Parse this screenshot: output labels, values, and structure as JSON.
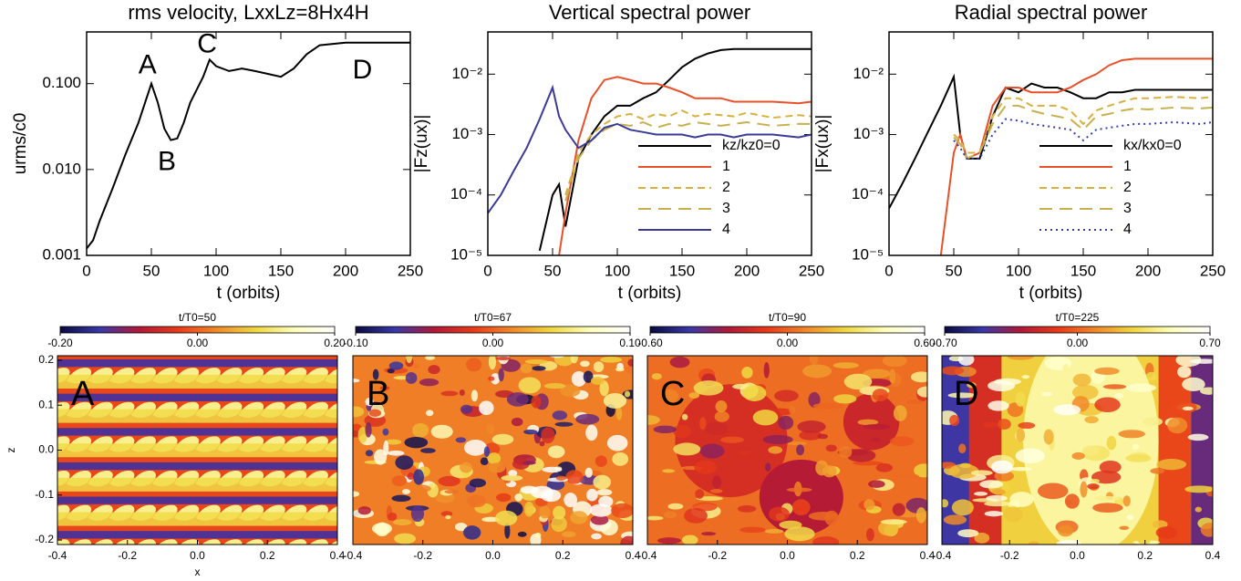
{
  "chart_data": [
    {
      "type": "line",
      "title": "rms velocity, LxxLz=8Hx4H",
      "xlabel": "t (orbits)",
      "ylabel": "urms/c0",
      "ylog": true,
      "xlim": [
        0,
        250
      ],
      "ylim": [
        0.001,
        0.4
      ],
      "xticks": [
        0,
        50,
        100,
        150,
        200,
        250
      ],
      "yticks": [
        0.001,
        {
          "value": 0.01,
          "label": "0.010"
        },
        {
          "value": 0.1,
          "label": "0.100"
        }
      ],
      "x": [
        0,
        5,
        10,
        20,
        30,
        40,
        50,
        55,
        60,
        65,
        70,
        75,
        80,
        90,
        95,
        100,
        110,
        120,
        130,
        140,
        150,
        160,
        170,
        180,
        200,
        220,
        250
      ],
      "series": [
        {
          "color": "#000000",
          "values": [
            0.0012,
            0.0015,
            0.0025,
            0.006,
            0.015,
            0.035,
            0.1,
            0.06,
            0.03,
            0.022,
            0.023,
            0.035,
            0.06,
            0.12,
            0.19,
            0.16,
            0.14,
            0.15,
            0.14,
            0.13,
            0.12,
            0.15,
            0.22,
            0.28,
            0.3,
            0.3,
            0.3
          ]
        }
      ],
      "annotations": [
        {
          "text": "A",
          "x": 47,
          "y": 0.16
        },
        {
          "text": "B",
          "x": 62,
          "y": 0.012
        },
        {
          "text": "C",
          "x": 93,
          "y": 0.28
        },
        {
          "text": "D",
          "x": 213,
          "y": 0.14
        }
      ]
    },
    {
      "type": "line",
      "title": "Vertical spectral power",
      "xlabel": "t (orbits)",
      "ylabel": "|Fz(ux)|",
      "ylog": true,
      "xlim": [
        0,
        250
      ],
      "ylim": [
        1e-05,
        0.05
      ],
      "legend": "lower right",
      "xticks": [
        0,
        50,
        100,
        150,
        200,
        250
      ],
      "yticks": [
        {
          "value": 1e-05,
          "label": "10⁻⁵"
        },
        {
          "value": 0.0001,
          "label": "10⁻⁴"
        },
        {
          "value": 0.001,
          "label": "10⁻³"
        },
        {
          "value": 0.01,
          "label": "10⁻²"
        }
      ],
      "x": [
        0,
        10,
        20,
        30,
        40,
        50,
        55,
        60,
        70,
        80,
        90,
        100,
        110,
        120,
        130,
        140,
        150,
        160,
        170,
        180,
        190,
        200,
        220,
        240,
        250
      ],
      "series": [
        {
          "name": "kz/kz0=0",
          "color": "#000000",
          "values": [
            null,
            null,
            null,
            null,
            1.2e-05,
            0.0001,
            0.00015,
            3e-05,
            0.0004,
            0.001,
            0.002,
            0.003,
            0.003,
            0.004,
            0.005,
            0.008,
            0.013,
            0.018,
            0.022,
            0.025,
            0.026,
            0.026,
            0.026,
            0.026,
            0.026
          ]
        },
        {
          "name": "1",
          "color": "#e8502a",
          "values": [
            null,
            null,
            null,
            null,
            null,
            null,
            1e-05,
            5e-05,
            0.0008,
            0.004,
            0.008,
            0.009,
            0.008,
            0.007,
            0.007,
            0.006,
            0.005,
            0.004,
            0.004,
            0.004,
            0.0035,
            0.0035,
            0.0035,
            0.0033,
            0.0035
          ]
        },
        {
          "name": "2",
          "color": "#d8b040",
          "dash": "8,5",
          "values": [
            null,
            null,
            null,
            null,
            null,
            null,
            null,
            0.0001,
            0.0005,
            0.001,
            0.0015,
            0.002,
            0.0022,
            0.0018,
            0.0022,
            0.002,
            0.0025,
            0.002,
            0.0022,
            0.0021,
            0.002,
            0.0023,
            0.0019,
            0.0021,
            0.002
          ]
        },
        {
          "name": "3",
          "color": "#c8b050",
          "dash": "14,8",
          "values": [
            null,
            null,
            null,
            null,
            null,
            null,
            null,
            8e-05,
            0.0004,
            0.0008,
            0.0012,
            0.0015,
            0.0014,
            0.0016,
            0.0013,
            0.0015,
            0.0014,
            0.0016,
            0.0015,
            0.0014,
            0.0015,
            0.0016,
            0.0014,
            0.0015,
            0.0015
          ]
        },
        {
          "name": "4",
          "color": "#3a3a98",
          "values": [
            5e-05,
            0.0001,
            0.00025,
            0.0006,
            0.0018,
            0.006,
            0.002,
            0.0012,
            0.0006,
            0.0008,
            0.0013,
            0.0015,
            0.0012,
            0.0011,
            0.001,
            0.001,
            0.001,
            0.0009,
            0.001,
            0.001,
            0.0009,
            0.001,
            0.001,
            0.0009,
            0.001
          ]
        }
      ]
    },
    {
      "type": "line",
      "title": "Radial spectral power",
      "xlabel": "t (orbits)",
      "ylabel": "|Fx(ux)|",
      "ylog": true,
      "xlim": [
        0,
        250
      ],
      "ylim": [
        1e-05,
        0.05
      ],
      "legend": "lower right",
      "xticks": [
        0,
        50,
        100,
        150,
        200,
        250
      ],
      "yticks": [
        {
          "value": 1e-05,
          "label": "10⁻⁵"
        },
        {
          "value": 0.0001,
          "label": "10⁻⁴"
        },
        {
          "value": 0.001,
          "label": "10⁻³"
        },
        {
          "value": 0.01,
          "label": "10⁻²"
        }
      ],
      "x": [
        0,
        10,
        20,
        30,
        40,
        50,
        55,
        60,
        70,
        80,
        90,
        100,
        110,
        120,
        130,
        140,
        150,
        160,
        170,
        180,
        190,
        200,
        220,
        240,
        250
      ],
      "series": [
        {
          "name": "kx/kx0=0",
          "color": "#000000",
          "values": [
            6e-05,
            0.00015,
            0.0004,
            0.0011,
            0.003,
            0.009,
            0.001,
            0.0004,
            0.0004,
            0.002,
            0.006,
            0.005,
            0.007,
            0.006,
            0.006,
            0.005,
            0.004,
            0.004,
            0.005,
            0.005,
            0.0055,
            0.0055,
            0.0055,
            0.0055,
            0.0055
          ]
        },
        {
          "name": "1",
          "color": "#e8502a",
          "values": [
            null,
            null,
            null,
            null,
            1e-05,
            0.0005,
            0.001,
            0.0004,
            0.0005,
            0.003,
            0.006,
            0.006,
            0.005,
            0.005,
            0.005,
            0.006,
            0.008,
            0.01,
            0.014,
            0.017,
            0.018,
            0.018,
            0.018,
            0.018,
            0.018
          ]
        },
        {
          "name": "2",
          "color": "#d8b040",
          "dash": "8,5",
          "values": [
            null,
            null,
            null,
            null,
            null,
            0.001,
            0.0008,
            0.0005,
            0.0005,
            0.002,
            0.004,
            0.004,
            0.003,
            0.003,
            0.003,
            0.0025,
            0.0015,
            0.0025,
            0.003,
            0.0035,
            0.004,
            0.004,
            0.0042,
            0.004,
            0.0042
          ]
        },
        {
          "name": "3",
          "color": "#c8b050",
          "dash": "14,8",
          "values": [
            null,
            null,
            null,
            null,
            null,
            0.0009,
            0.0007,
            0.0004,
            0.0005,
            0.0015,
            0.003,
            0.003,
            0.0025,
            0.0022,
            0.002,
            0.0018,
            0.0012,
            0.002,
            0.0022,
            0.0025,
            0.0027,
            0.0026,
            0.0028,
            0.0027,
            0.0028
          ]
        },
        {
          "name": "4",
          "color": "#3040b0",
          "dash": "2,4",
          "values": [
            null,
            null,
            null,
            null,
            null,
            0.0008,
            0.0006,
            0.0004,
            0.0004,
            0.001,
            0.0018,
            0.0017,
            0.0015,
            0.0014,
            0.0013,
            0.0012,
            0.0008,
            0.0012,
            0.0013,
            0.0014,
            0.0015,
            0.0015,
            0.0016,
            0.0015,
            0.0016
          ]
        }
      ]
    },
    {
      "type": "heatmap",
      "title": "t/T0=50",
      "xlabel": "x",
      "ylabel": "z",
      "xlim": [
        -0.4,
        0.4
      ],
      "ylim": [
        -0.21,
        0.21
      ],
      "clim": [
        -0.2,
        0.2
      ],
      "xticks": [
        -0.4,
        -0.2,
        {
          "value": 0,
          "label": "0.0"
        },
        0.2,
        0.4
      ],
      "yticks": [
        -0.2,
        -0.1,
        {
          "value": 0,
          "label": "0.0"
        },
        0.1,
        0.2
      ],
      "cticks": [
        {
          "value": -0.2,
          "label": "-0.20"
        },
        {
          "value": 0,
          "label": "0.00"
        },
        {
          "value": 0.2,
          "label": "0.20"
        }
      ],
      "colormap": [
        "#0a0a40",
        "#3838a8",
        "#b01838",
        "#e83a18",
        "#f08a28",
        "#f0d840",
        "#ffffc0",
        "#ffffff"
      ],
      "annotation": {
        "text": "A",
        "color": "#9a9a9a"
      }
    },
    {
      "type": "heatmap",
      "title": "t/T0=67",
      "xlim": [
        -0.4,
        0.4
      ],
      "clim": [
        -0.1,
        0.1
      ],
      "xticks": [
        -0.4,
        -0.2,
        {
          "value": 0,
          "label": "0.0"
        },
        0.2,
        0.4
      ],
      "cticks": [
        {
          "value": -0.1,
          "label": "-0.10"
        },
        {
          "value": 0,
          "label": "0.00"
        },
        {
          "value": 0.1,
          "label": "0.10"
        }
      ],
      "colormap": [
        "#0a0a40",
        "#3838a8",
        "#b01838",
        "#e83a18",
        "#f08a28",
        "#f0d840",
        "#ffffc0",
        "#ffffff"
      ],
      "annotation": {
        "text": "B",
        "color": "#000000"
      }
    },
    {
      "type": "heatmap",
      "title": "t/T0=90",
      "xlim": [
        -0.4,
        0.4
      ],
      "clim": [
        -0.6,
        0.6
      ],
      "xticks": [
        -0.4,
        -0.2,
        {
          "value": 0,
          "label": "0.0"
        },
        0.2,
        0.4
      ],
      "cticks": [
        {
          "value": -0.6,
          "label": "-0.60"
        },
        {
          "value": 0,
          "label": "0.00"
        },
        {
          "value": 0.6,
          "label": "0.60"
        }
      ],
      "colormap": [
        "#0a0a40",
        "#3838a8",
        "#b01838",
        "#e83a18",
        "#f08a28",
        "#f0d840",
        "#ffffc0",
        "#ffffff"
      ],
      "annotation": {
        "text": "C",
        "color": "#000000"
      }
    },
    {
      "type": "heatmap",
      "title": "t/T0=225",
      "xlim": [
        -0.4,
        0.4
      ],
      "clim": [
        -0.7,
        0.7
      ],
      "xticks": [
        -0.4,
        -0.2,
        {
          "value": 0,
          "label": "0.0"
        },
        0.2,
        0.4
      ],
      "cticks": [
        {
          "value": -0.7,
          "label": "-0.70"
        },
        {
          "value": 0,
          "label": "0.00"
        },
        {
          "value": 0.7,
          "label": "0.70"
        }
      ],
      "colormap": [
        "#0a0a40",
        "#3838a8",
        "#b01838",
        "#e83a18",
        "#f08a28",
        "#f0d840",
        "#ffffc0",
        "#ffffff"
      ],
      "annotation": {
        "text": "D",
        "color": "#ffffff"
      }
    }
  ]
}
